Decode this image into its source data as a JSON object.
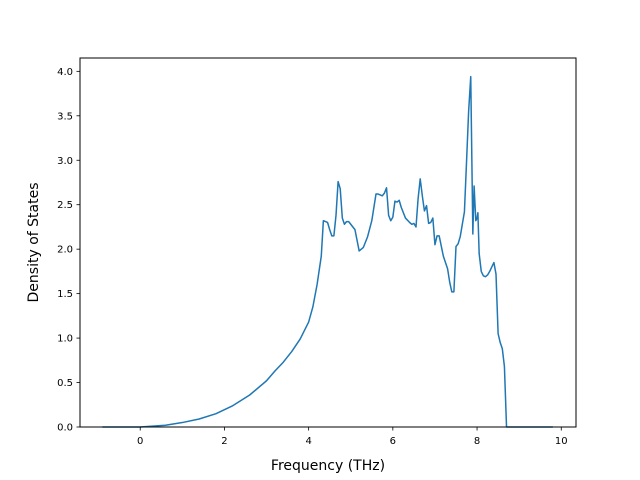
{
  "chart_data": {
    "type": "line",
    "title": "",
    "xlabel": "Frequency (THz)",
    "ylabel": "Density of States",
    "xlim": [
      -1.43,
      10.35
    ],
    "ylim": [
      0,
      4.15
    ],
    "xticks": [
      0,
      2,
      4,
      6,
      8,
      10
    ],
    "xtick_labels": [
      "0",
      "2",
      "4",
      "6",
      "8",
      "10"
    ],
    "yticks": [
      0.0,
      0.5,
      1.0,
      1.5,
      2.0,
      2.5,
      3.0,
      3.5,
      4.0
    ],
    "ytick_labels": [
      "0.0",
      "0.5",
      "1.0",
      "1.5",
      "2.0",
      "2.5",
      "3.0",
      "3.5",
      "4.0"
    ],
    "grid": false,
    "legend": "none",
    "series": [
      {
        "color": "#1f77b4",
        "x": [
          -0.9,
          -0.5,
          0.0,
          0.3,
          0.6,
          1.0,
          1.4,
          1.8,
          2.2,
          2.6,
          3.0,
          3.2,
          3.4,
          3.6,
          3.8,
          4.0,
          4.1,
          4.2,
          4.3,
          4.35,
          4.45,
          4.5,
          4.55,
          4.6,
          4.65,
          4.7,
          4.75,
          4.8,
          4.85,
          4.9,
          4.95,
          5.0,
          5.1,
          5.2,
          5.3,
          5.4,
          5.5,
          5.6,
          5.65,
          5.7,
          5.75,
          5.8,
          5.85,
          5.9,
          5.95,
          6.0,
          6.05,
          6.1,
          6.15,
          6.2,
          6.3,
          6.4,
          6.45,
          6.5,
          6.55,
          6.6,
          6.65,
          6.7,
          6.75,
          6.8,
          6.85,
          6.9,
          6.95,
          7.0,
          7.05,
          7.1,
          7.2,
          7.3,
          7.35,
          7.4,
          7.45,
          7.5,
          7.55,
          7.6,
          7.65,
          7.7,
          7.75,
          7.8,
          7.85,
          7.9,
          7.93,
          7.97,
          8.0,
          8.02,
          8.05,
          8.1,
          8.15,
          8.2,
          8.25,
          8.3,
          8.35,
          8.4,
          8.45,
          8.5,
          8.55,
          8.6,
          8.65,
          8.7,
          8.75,
          8.8,
          8.85,
          8.9,
          8.93,
          8.95,
          9.0,
          9.5,
          9.8
        ],
        "values": [
          0.0,
          0.0,
          0.0,
          0.01,
          0.02,
          0.05,
          0.09,
          0.15,
          0.24,
          0.36,
          0.52,
          0.63,
          0.73,
          0.85,
          0.99,
          1.18,
          1.35,
          1.6,
          1.92,
          2.32,
          2.3,
          2.22,
          2.15,
          2.15,
          2.38,
          2.76,
          2.68,
          2.35,
          2.28,
          2.31,
          2.31,
          2.28,
          2.22,
          1.98,
          2.02,
          2.14,
          2.32,
          2.62,
          2.62,
          2.61,
          2.6,
          2.63,
          2.69,
          2.38,
          2.32,
          2.36,
          2.54,
          2.53,
          2.55,
          2.47,
          2.35,
          2.3,
          2.28,
          2.29,
          2.25,
          2.57,
          2.79,
          2.6,
          2.43,
          2.49,
          2.29,
          2.3,
          2.35,
          2.05,
          2.15,
          2.15,
          1.92,
          1.78,
          1.63,
          1.52,
          1.52,
          2.03,
          2.06,
          2.14,
          2.28,
          2.42,
          2.98,
          3.55,
          3.94,
          2.17,
          2.71,
          2.32,
          2.35,
          2.41,
          1.95,
          1.75,
          1.7,
          1.69,
          1.71,
          1.75,
          1.8,
          1.85,
          1.72,
          1.05,
          0.95,
          0.88,
          0.68,
          0.0,
          0.0,
          0.0,
          0.0,
          0.0,
          0.0,
          0.0,
          0.0,
          0.0,
          0.0
        ]
      }
    ]
  }
}
